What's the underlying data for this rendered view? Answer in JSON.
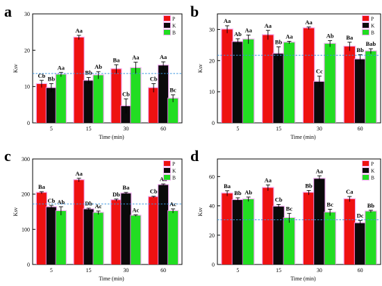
{
  "figure": {
    "palette": {
      "P": "#ee1111",
      "K": "#0a0a0a",
      "B": "#22dd22",
      "bar_shadow": "#ee90ee",
      "ref_line": "#3a95e0",
      "letter_color": "#000000"
    }
  },
  "chart_data": [
    {
      "panel": "a",
      "type": "bar",
      "xlabel": "Time (min)",
      "ylabel": "Ksv",
      "categories": [
        "5",
        "15",
        "30",
        "60"
      ],
      "ylim": [
        0,
        30
      ],
      "yticks": [
        0,
        10,
        20,
        30
      ],
      "reference_line": 13.6,
      "legend": [
        "P",
        "K",
        "B"
      ],
      "legend_position": "top-right",
      "series": [
        {
          "name": "P",
          "values": [
            10.7,
            23.5,
            14.8,
            9.6
          ],
          "errors": [
            1.0,
            0.6,
            1.2,
            1.2
          ],
          "letters": [
            "Cb",
            "Aa",
            "Ba",
            "Cb"
          ]
        },
        {
          "name": "K",
          "values": [
            9.6,
            11.6,
            4.6,
            15.8
          ],
          "errors": [
            1.2,
            0.9,
            2.0,
            1.0
          ],
          "letters": [
            "Bb",
            "Bb",
            "Cb",
            "Aa"
          ]
        },
        {
          "name": "B",
          "values": [
            13.3,
            13.1,
            15.1,
            6.7
          ],
          "errors": [
            0.6,
            1.0,
            1.6,
            1.0
          ],
          "letters": [
            "Aa",
            "Ab",
            "Aa",
            "Bc"
          ]
        }
      ]
    },
    {
      "panel": "b",
      "type": "bar",
      "xlabel": "Time (min)",
      "ylabel": "Ksv",
      "categories": [
        "5",
        "15",
        "30",
        "60"
      ],
      "ylim": [
        0,
        35
      ],
      "yticks": [
        0,
        10,
        20,
        30
      ],
      "reference_line": 21.7,
      "legend": [
        "P",
        "K",
        "B"
      ],
      "legend_position": "top-right",
      "series": [
        {
          "name": "P",
          "values": [
            30.0,
            28.2,
            30.4,
            24.5
          ],
          "errors": [
            1.2,
            1.5,
            0.4,
            1.4
          ],
          "letters": [
            "Aa",
            "Aa",
            "Aa",
            "Ba"
          ]
        },
        {
          "name": "K",
          "values": [
            26.0,
            22.2,
            13.2,
            20.4
          ],
          "errors": [
            1.0,
            2.2,
            1.8,
            1.5
          ],
          "letters": [
            "Ab",
            "Bb",
            "Cc",
            "Bb"
          ]
        },
        {
          "name": "B",
          "values": [
            26.8,
            25.8,
            25.4,
            23.0
          ],
          "errors": [
            1.4,
            0.4,
            1.0,
            0.8
          ],
          "letters": [
            "Aa",
            "Aa",
            "Ab",
            "Bab"
          ]
        }
      ]
    },
    {
      "panel": "c",
      "type": "bar",
      "xlabel": "Time (min)",
      "ylabel": "Ksv",
      "categories": [
        "5",
        "15",
        "30",
        "60"
      ],
      "ylim": [
        0,
        300
      ],
      "yticks": [
        0,
        100,
        200,
        300
      ],
      "reference_line": 172,
      "legend": [
        "P",
        "K",
        "B"
      ],
      "legend_position": "top-right",
      "series": [
        {
          "name": "P",
          "values": [
            204,
            240,
            183,
            192
          ],
          "errors": [
            3,
            5,
            3,
            2
          ],
          "letters": [
            "Ba",
            "Aa",
            "Db",
            "Cb"
          ]
        },
        {
          "name": "K",
          "values": [
            163,
            157,
            202,
            226
          ],
          "errors": [
            5,
            3,
            3,
            3
          ],
          "letters": [
            "Cb",
            "Db",
            "Ba",
            "Aa"
          ]
        },
        {
          "name": "B",
          "values": [
            152,
            147,
            139,
            152
          ],
          "errors": [
            12,
            5,
            2,
            6
          ],
          "letters": [
            "Ab",
            "Ac",
            "Ac",
            "Ac"
          ]
        }
      ]
    },
    {
      "panel": "d",
      "type": "bar",
      "xlabel": "Time (min)",
      "ylabel": "Ksv",
      "categories": [
        "5",
        "15",
        "30",
        "60"
      ],
      "ylim": [
        0,
        72
      ],
      "yticks": [
        0,
        20,
        40,
        60
      ],
      "reference_line": 30.5,
      "legend": [
        "P",
        "K",
        "B"
      ],
      "legend_position": "top-right",
      "series": [
        {
          "name": "P",
          "values": [
            48.5,
            52.3,
            49.0,
            44.6
          ],
          "errors": [
            1.8,
            2.0,
            1.5,
            1.8
          ],
          "letters": [
            "Ba",
            "Aa",
            "Bb",
            "Ca"
          ]
        },
        {
          "name": "K",
          "values": [
            44.0,
            39.5,
            58.5,
            28.2
          ],
          "errors": [
            1.5,
            1.5,
            2.0,
            1.8
          ],
          "letters": [
            "Bb",
            "Cb",
            "Aa",
            "Dc"
          ]
        },
        {
          "name": "B",
          "values": [
            44.5,
            31.7,
            35.5,
            36.2
          ],
          "errors": [
            1.5,
            3.2,
            2.2,
            0.8
          ],
          "letters": [
            "Ab",
            "Bc",
            "Bc",
            "Bb"
          ]
        }
      ]
    }
  ]
}
